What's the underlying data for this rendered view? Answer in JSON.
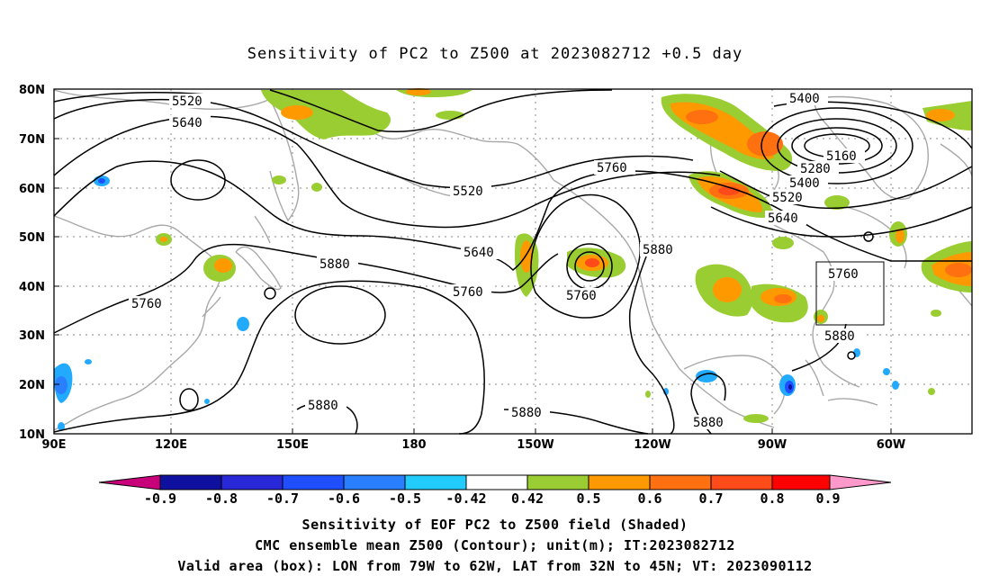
{
  "title": "Sensitivity of PC2 to Z500 at 2023082712 +0.5 day",
  "footer": {
    "line1": "Sensitivity of EOF PC2 to Z500 field (Shaded)",
    "line2": "CMC ensemble mean Z500 (Contour); unit(m); IT:2023082712",
    "line3": "Valid area (box): LON from 79W to 62W, LAT from 32N to 45N; VT: 2023090112"
  },
  "axes": {
    "lat_labels": [
      "80N",
      "70N",
      "60N",
      "50N",
      "40N",
      "30N",
      "20N",
      "10N"
    ],
    "lon_labels": [
      "90E",
      "120E",
      "150E",
      "180",
      "150W",
      "120W",
      "90W",
      "60W"
    ]
  },
  "colorbar": {
    "labels": [
      "-0.9",
      "-0.8",
      "-0.7",
      "-0.6",
      "-0.5",
      "-0.42",
      "0.42",
      "0.5",
      "0.6",
      "0.7",
      "0.8",
      "0.9"
    ],
    "colors": [
      "#c8007a",
      "#1010a0",
      "#2828d8",
      "#1f4fff",
      "#2a7fff",
      "#22aaff",
      "#00c8ff",
      "#ffffff",
      "#9acd32",
      "#ff9900",
      "#ff7010",
      "#ff4a1a",
      "#ff0000",
      "#ff99cc"
    ]
  },
  "contour_labels": [
    "5520",
    "5640",
    "5400",
    "5160",
    "5280",
    "5400",
    "5520",
    "5640",
    "5760",
    "5520",
    "5640",
    "5760",
    "5760",
    "5880",
    "5880",
    "5760",
    "5760",
    "5880",
    "5880",
    "5880",
    "5880"
  ],
  "valid_area": {
    "lon_range": "79W to 62W",
    "lat_range": "32N to 45N"
  }
}
